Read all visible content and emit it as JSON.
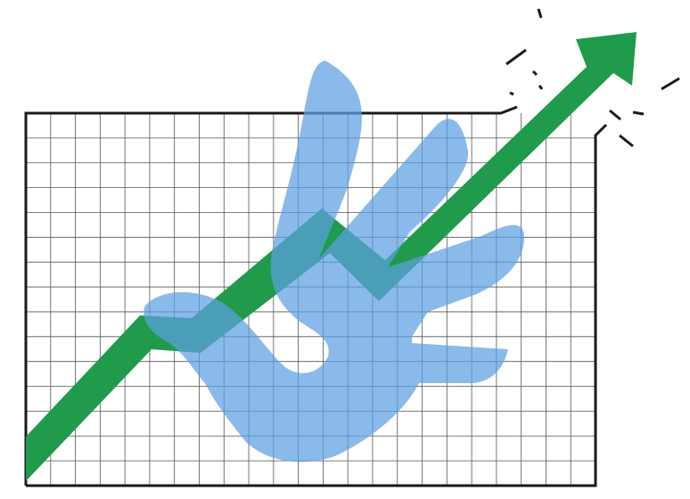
{
  "illustration": {
    "subject": "growth-chart-with-hand-icon",
    "colors": {
      "background": "#ffffff",
      "grid_line": "#555555",
      "frame": "#1a1a1a",
      "arrow": "#1f9b4b",
      "hand": "#5d9fe0",
      "burst": "#1a1a1a"
    },
    "grid": {
      "columns": 23,
      "rows": 15
    },
    "icons": [
      "up-trend-arrow-icon",
      "hand-icon",
      "burst-lines-icon"
    ]
  }
}
